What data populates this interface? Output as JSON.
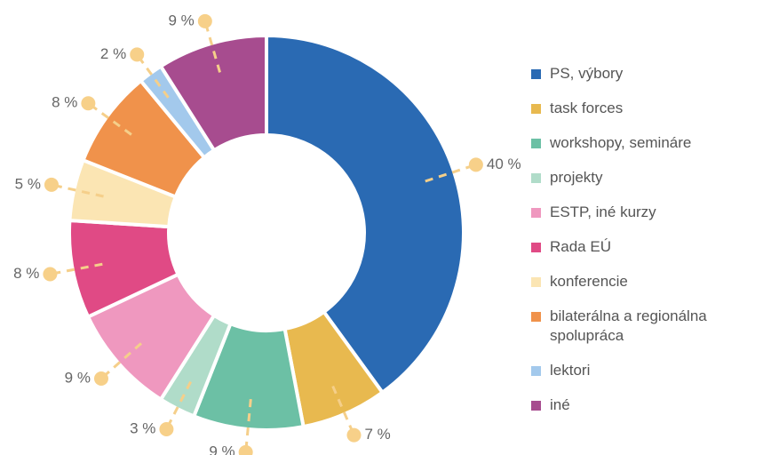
{
  "chart_data": {
    "type": "donut",
    "categories": [
      "PS, výbory",
      "task forces",
      "workshopy, semináre",
      "projekty",
      "ESTP, iné kurzy",
      "Rada EÚ",
      "konferencie",
      "bilaterálna a regionálna spolupráca",
      "lektori",
      "iné"
    ],
    "values": [
      40,
      7,
      9,
      3,
      9,
      8,
      5,
      8,
      2,
      9
    ],
    "value_labels": [
      "40 %",
      "7 %",
      "9 %",
      "3 %",
      "9 %",
      "8 %",
      "5 %",
      "8 %",
      "2 %",
      "9 %"
    ],
    "colors": [
      "#2a6ab3",
      "#e8b94f",
      "#6cc0a5",
      "#b0dcc9",
      "#ef98bf",
      "#e04a85",
      "#fbe5b3",
      "#f0924b",
      "#a3c9ec",
      "#a74c8f"
    ],
    "legend": "right"
  }
}
